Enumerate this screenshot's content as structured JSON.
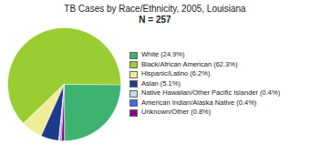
{
  "chart_data": {
    "type": "pie",
    "title": "TB Cases by Race/Ethnicity, 2005, Louisiana",
    "subtitle": "N = 257",
    "categories": [
      "White (24.9%)",
      "Black/African American (62.3%)",
      "Hispanic/Latino (6.2%)",
      "Asian (5.1%)",
      "Native Hawaiian/Other Pacific Islander (0.4%)",
      "American Indian/Alaska Native (0.4%)",
      "Unknown/Other (0.8%)"
    ],
    "values": [
      24.9,
      62.3,
      6.2,
      5.1,
      0.4,
      0.4,
      0.8
    ],
    "colors": [
      "#3CB371",
      "#9ACD32",
      "#EEEE99",
      "#1E3A8A",
      "#C8D8F0",
      "#4169E1",
      "#8B008B"
    ],
    "legend": "right"
  }
}
